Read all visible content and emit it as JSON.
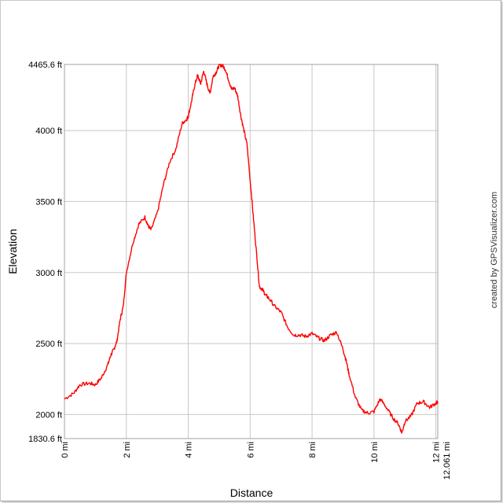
{
  "chart_data": {
    "type": "line",
    "xlabel": "Distance",
    "ylabel": "Elevation",
    "credit": "created by GPSVisualizer.com",
    "xlim": [
      0,
      12.061
    ],
    "ylim": [
      1830.6,
      4465.6
    ],
    "grid": true,
    "x_ticks": [
      {
        "value": 0,
        "label": "0 mi"
      },
      {
        "value": 2,
        "label": "2 mi"
      },
      {
        "value": 4,
        "label": "4 mi"
      },
      {
        "value": 6,
        "label": "6 mi"
      },
      {
        "value": 8,
        "label": "8 mi"
      },
      {
        "value": 10,
        "label": "10 mi"
      },
      {
        "value": 12,
        "label": "12 mi"
      }
    ],
    "x_end_label": "12.061 mi",
    "y_ticks": [
      {
        "value": 1830.6,
        "label": "1830.6 ft"
      },
      {
        "value": 2000,
        "label": "2000 ft"
      },
      {
        "value": 2500,
        "label": "2500 ft"
      },
      {
        "value": 3000,
        "label": "3000 ft"
      },
      {
        "value": 3500,
        "label": "3500 ft"
      },
      {
        "value": 4000,
        "label": "4000 ft"
      },
      {
        "value": 4465.6,
        "label": "4465.6 ft"
      }
    ],
    "series": [
      {
        "color": "#ff0000",
        "x": [
          0,
          0.3,
          0.5,
          0.8,
          1.0,
          1.2,
          1.4,
          1.5,
          1.6,
          1.7,
          1.8,
          1.9,
          2.0,
          2.2,
          2.4,
          2.6,
          2.7,
          2.8,
          3.0,
          3.2,
          3.4,
          3.6,
          3.8,
          3.95,
          4.0,
          4.1,
          4.2,
          4.3,
          4.4,
          4.5,
          4.6,
          4.7,
          4.8,
          4.9,
          5.0,
          5.1,
          5.2,
          5.3,
          5.4,
          5.5,
          5.6,
          5.7,
          5.8,
          5.9,
          6.0,
          6.1,
          6.2,
          6.3,
          6.4,
          6.5,
          6.6,
          6.8,
          7.0,
          7.2,
          7.4,
          7.6,
          7.8,
          8.0,
          8.2,
          8.4,
          8.6,
          8.8,
          9.0,
          9.1,
          9.2,
          9.4,
          9.6,
          9.8,
          10.0,
          10.2,
          10.4,
          10.6,
          10.8,
          10.9,
          11.0,
          11.2,
          11.4,
          11.6,
          11.8,
          12.0,
          12.061
        ],
        "y": [
          2110,
          2150,
          2210,
          2220,
          2210,
          2260,
          2350,
          2420,
          2460,
          2520,
          2670,
          2760,
          3000,
          3200,
          3340,
          3390,
          3330,
          3300,
          3420,
          3620,
          3780,
          3870,
          4050,
          4080,
          4100,
          4200,
          4310,
          4390,
          4330,
          4420,
          4330,
          4260,
          4380,
          4410,
          4460,
          4460,
          4430,
          4360,
          4290,
          4300,
          4240,
          4100,
          4000,
          3900,
          3650,
          3400,
          3150,
          2900,
          2880,
          2840,
          2820,
          2760,
          2720,
          2620,
          2560,
          2560,
          2550,
          2570,
          2540,
          2520,
          2560,
          2580,
          2460,
          2380,
          2280,
          2120,
          2030,
          2010,
          2020,
          2110,
          2050,
          1980,
          1930,
          1870,
          1950,
          1990,
          2080,
          2090,
          2050,
          2080,
          2090
        ]
      }
    ]
  }
}
